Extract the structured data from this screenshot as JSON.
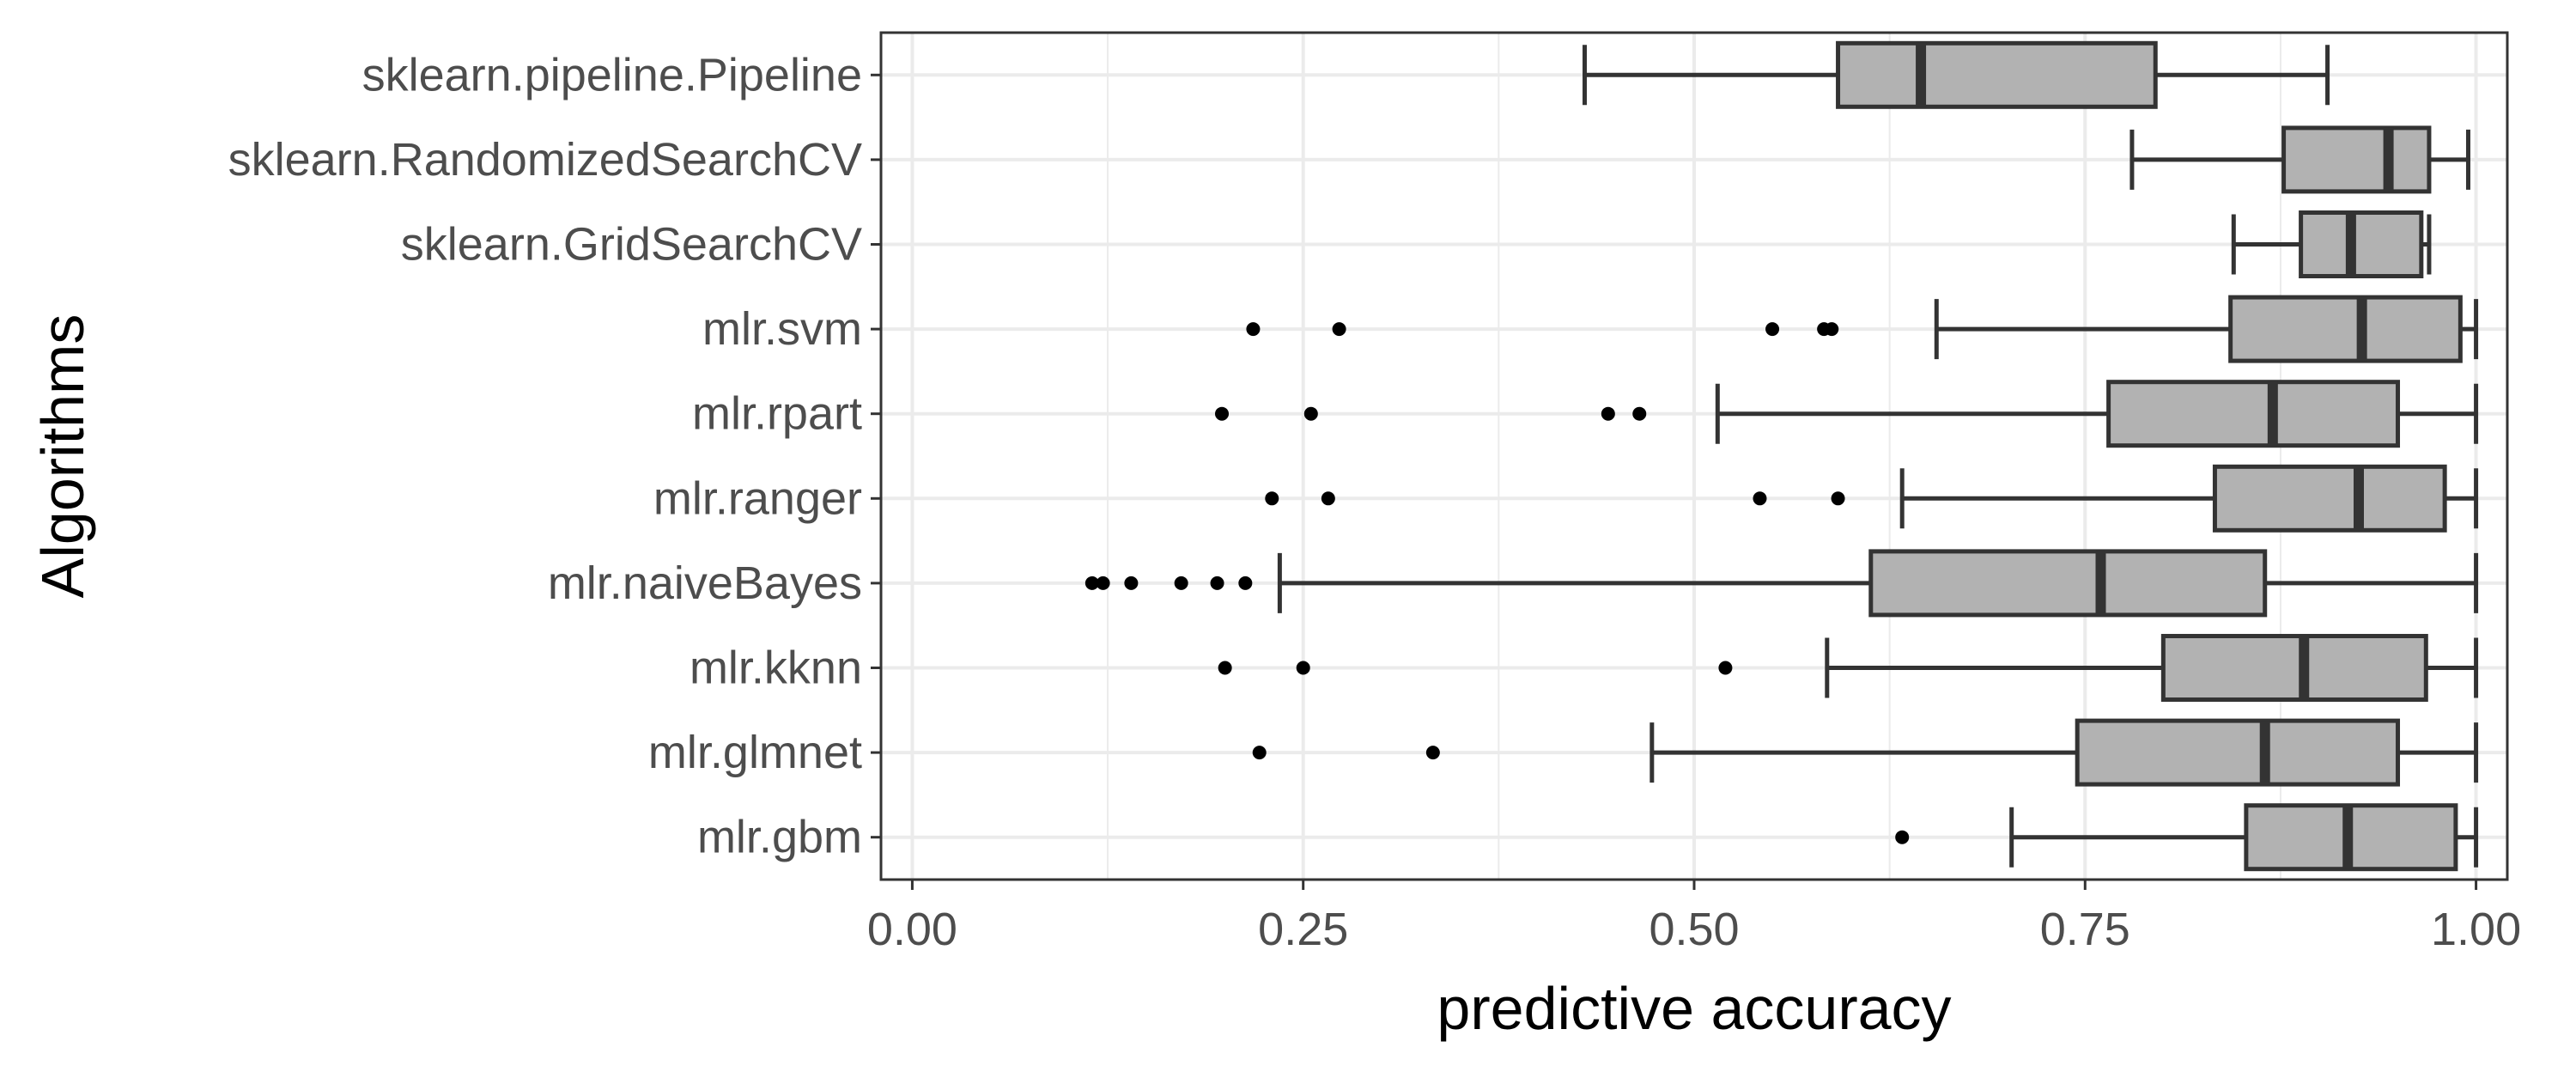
{
  "chart_data": {
    "type": "boxplot",
    "orientation": "horizontal",
    "xlabel": "predictive accuracy",
    "ylabel": "Algorithms",
    "xlim": [
      -0.02,
      1.02
    ],
    "x_ticks": [
      0.0,
      0.25,
      0.5,
      0.75,
      1.0
    ],
    "x_tick_labels": [
      "0.00",
      "0.25",
      "0.50",
      "0.75",
      "1.00"
    ],
    "grid": true,
    "colors": {
      "box_fill": "#b2b2b2",
      "box_stroke": "#333333",
      "grid": "#ebebeb",
      "panel_border": "#333333"
    },
    "categories": [
      "sklearn.pipeline.Pipeline",
      "sklearn.RandomizedSearchCV",
      "sklearn.GridSearchCV",
      "mlr.svm",
      "mlr.rpart",
      "mlr.ranger",
      "mlr.naiveBayes",
      "mlr.kknn",
      "mlr.glmnet",
      "mlr.gbm"
    ],
    "boxes": [
      {
        "name": "sklearn.pipeline.Pipeline",
        "whisker_low": 0.43,
        "q1": 0.592,
        "median": 0.645,
        "q3": 0.795,
        "whisker_high": 0.905,
        "outliers": []
      },
      {
        "name": "sklearn.RandomizedSearchCV",
        "whisker_low": 0.78,
        "q1": 0.877,
        "median": 0.944,
        "q3": 0.97,
        "whisker_high": 0.995,
        "outliers": []
      },
      {
        "name": "sklearn.GridSearchCV",
        "whisker_low": 0.845,
        "q1": 0.888,
        "median": 0.92,
        "q3": 0.965,
        "whisker_high": 0.97,
        "outliers": []
      },
      {
        "name": "mlr.svm",
        "whisker_low": 0.655,
        "q1": 0.843,
        "median": 0.927,
        "q3": 0.99,
        "whisker_high": 1.0,
        "outliers": [
          0.218,
          0.273,
          0.55,
          0.583,
          0.588
        ]
      },
      {
        "name": "mlr.rpart",
        "whisker_low": 0.515,
        "q1": 0.765,
        "median": 0.87,
        "q3": 0.95,
        "whisker_high": 1.0,
        "outliers": [
          0.198,
          0.255,
          0.445,
          0.465
        ]
      },
      {
        "name": "mlr.ranger",
        "whisker_low": 0.633,
        "q1": 0.833,
        "median": 0.925,
        "q3": 0.98,
        "whisker_high": 1.0,
        "outliers": [
          0.23,
          0.266,
          0.542,
          0.592
        ]
      },
      {
        "name": "mlr.naiveBayes",
        "whisker_low": 0.235,
        "q1": 0.613,
        "median": 0.76,
        "q3": 0.865,
        "whisker_high": 1.0,
        "outliers": [
          0.115,
          0.122,
          0.14,
          0.172,
          0.195,
          0.213
        ]
      },
      {
        "name": "mlr.kknn",
        "whisker_low": 0.585,
        "q1": 0.8,
        "median": 0.89,
        "q3": 0.968,
        "whisker_high": 1.0,
        "outliers": [
          0.2,
          0.25,
          0.52
        ]
      },
      {
        "name": "mlr.glmnet",
        "whisker_low": 0.473,
        "q1": 0.745,
        "median": 0.865,
        "q3": 0.95,
        "whisker_high": 1.0,
        "outliers": [
          0.222,
          0.333
        ]
      },
      {
        "name": "mlr.gbm",
        "whisker_low": 0.703,
        "q1": 0.853,
        "median": 0.918,
        "q3": 0.987,
        "whisker_high": 1.0,
        "outliers": [
          0.633
        ]
      }
    ]
  }
}
